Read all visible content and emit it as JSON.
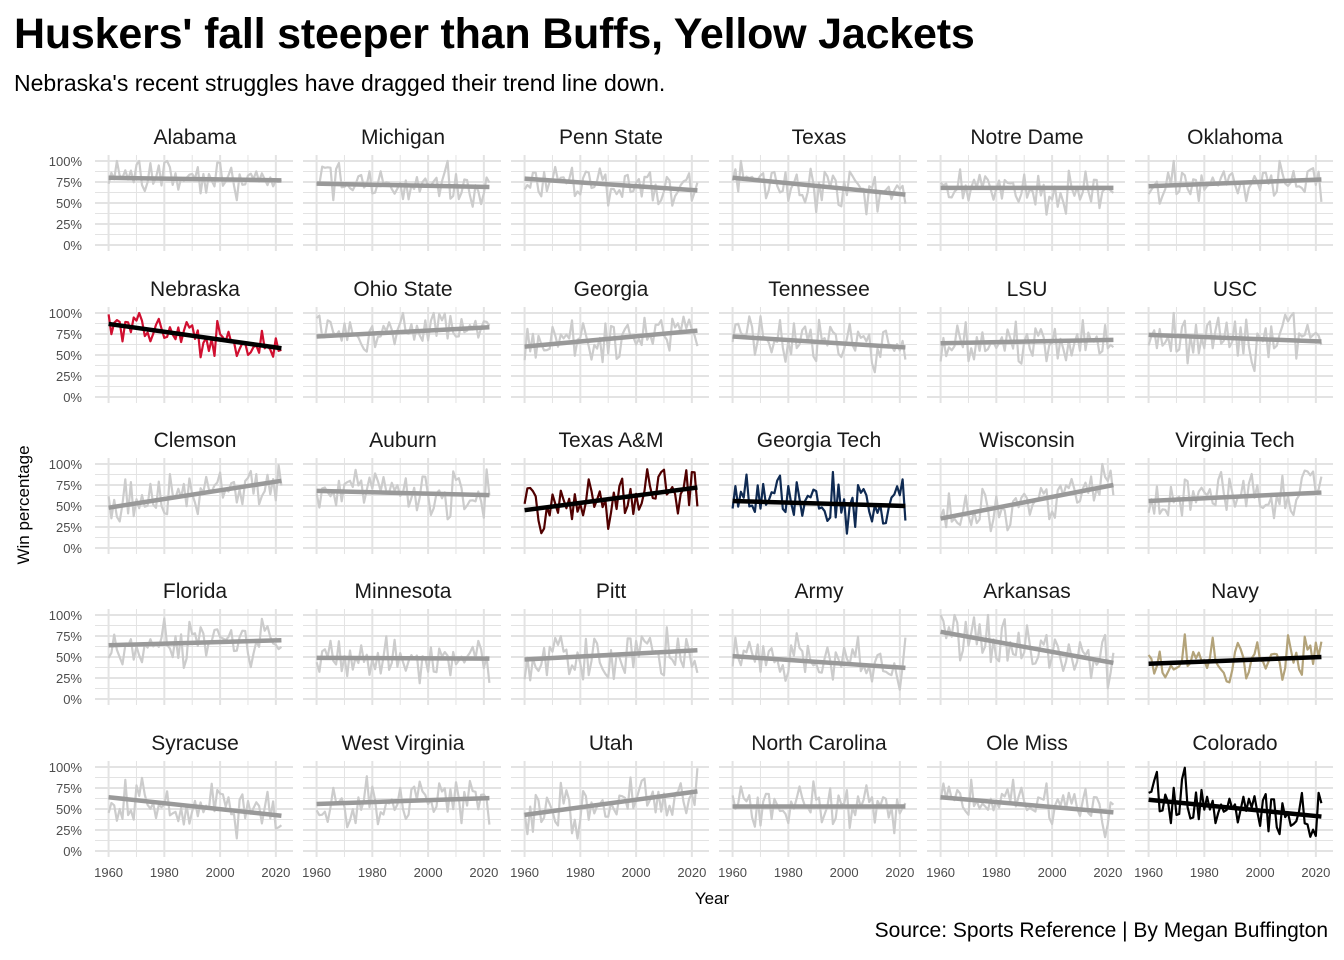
{
  "title": "Huskers' fall steeper than Buffs, Yellow Jackets",
  "subtitle": "Nebraska's recent struggles have dragged their trend line down.",
  "caption": "Source: Sports Reference | By Megan Buffington",
  "colors": {
    "muted_line": "#cccccc",
    "muted_trend": "#999999",
    "highlight_trend": "#000000",
    "grid": "#e3e3e3"
  },
  "chart_data": {
    "type": "line",
    "layout": "small-multiples",
    "xlabel": "Year",
    "ylabel": "Win percentage",
    "xlim": [
      1958,
      2024
    ],
    "ylim": [
      0,
      1
    ],
    "x_ticks": [
      1960,
      1980,
      2000,
      2020
    ],
    "x_tick_labels": [
      "1960",
      "1980",
      "2000",
      "2020"
    ],
    "y_ticks": [
      0,
      0.25,
      0.5,
      0.75,
      1
    ],
    "y_tick_labels": [
      "0%",
      "25%",
      "50%",
      "75%",
      "100%"
    ],
    "years": [
      1960,
      2022
    ],
    "teams": [
      {
        "name": "Alabama",
        "trend": [
          0.8,
          0.77
        ],
        "highlight": false,
        "seed": 11,
        "sd": 0.14
      },
      {
        "name": "Michigan",
        "trend": [
          0.73,
          0.69
        ],
        "highlight": false,
        "seed": 12,
        "sd": 0.17
      },
      {
        "name": "Penn State",
        "trend": [
          0.79,
          0.65
        ],
        "highlight": false,
        "seed": 13,
        "sd": 0.15
      },
      {
        "name": "Texas",
        "trend": [
          0.8,
          0.6
        ],
        "highlight": false,
        "seed": 14,
        "sd": 0.16
      },
      {
        "name": "Notre Dame",
        "trend": [
          0.68,
          0.68
        ],
        "highlight": false,
        "seed": 15,
        "sd": 0.16
      },
      {
        "name": "Oklahoma",
        "trend": [
          0.7,
          0.78
        ],
        "highlight": false,
        "seed": 16,
        "sd": 0.16
      },
      {
        "name": "Nebraska",
        "trend": [
          0.87,
          0.58
        ],
        "highlight": true,
        "color": "#d00f30",
        "seed": 21,
        "sd": 0.12
      },
      {
        "name": "Ohio State",
        "trend": [
          0.72,
          0.83
        ],
        "highlight": false,
        "seed": 22,
        "sd": 0.14
      },
      {
        "name": "Georgia",
        "trend": [
          0.6,
          0.79
        ],
        "highlight": false,
        "seed": 23,
        "sd": 0.16
      },
      {
        "name": "Tennessee",
        "trend": [
          0.72,
          0.59
        ],
        "highlight": false,
        "seed": 24,
        "sd": 0.17
      },
      {
        "name": "LSU",
        "trend": [
          0.64,
          0.68
        ],
        "highlight": false,
        "seed": 25,
        "sd": 0.16
      },
      {
        "name": "USC",
        "trend": [
          0.74,
          0.66
        ],
        "highlight": false,
        "seed": 26,
        "sd": 0.17
      },
      {
        "name": "Clemson",
        "trend": [
          0.48,
          0.8
        ],
        "highlight": false,
        "seed": 31,
        "sd": 0.17
      },
      {
        "name": "Auburn",
        "trend": [
          0.68,
          0.63
        ],
        "highlight": false,
        "seed": 32,
        "sd": 0.16
      },
      {
        "name": "Texas A&M",
        "trend": [
          0.45,
          0.72
        ],
        "highlight": true,
        "color": "#500000",
        "seed": 33,
        "sd": 0.17
      },
      {
        "name": "Georgia Tech",
        "trend": [
          0.56,
          0.5
        ],
        "highlight": true,
        "color": "#0f2a52",
        "seed": 34,
        "sd": 0.17
      },
      {
        "name": "Wisconsin",
        "trend": [
          0.35,
          0.75
        ],
        "highlight": false,
        "seed": 35,
        "sd": 0.17
      },
      {
        "name": "Virginia Tech",
        "trend": [
          0.56,
          0.66
        ],
        "highlight": false,
        "seed": 36,
        "sd": 0.16
      },
      {
        "name": "Florida",
        "trend": [
          0.64,
          0.7
        ],
        "highlight": false,
        "seed": 41,
        "sd": 0.16
      },
      {
        "name": "Minnesota",
        "trend": [
          0.49,
          0.48
        ],
        "highlight": false,
        "seed": 42,
        "sd": 0.16
      },
      {
        "name": "Pitt",
        "trend": [
          0.47,
          0.58
        ],
        "highlight": false,
        "seed": 43,
        "sd": 0.18
      },
      {
        "name": "Army",
        "trend": [
          0.51,
          0.37
        ],
        "highlight": false,
        "seed": 44,
        "sd": 0.18
      },
      {
        "name": "Arkansas",
        "trend": [
          0.8,
          0.43
        ],
        "highlight": false,
        "seed": 45,
        "sd": 0.17
      },
      {
        "name": "Navy",
        "trend": [
          0.42,
          0.5
        ],
        "highlight": true,
        "color": "#b3a37a",
        "seed": 46,
        "sd": 0.18
      },
      {
        "name": "Syracuse",
        "trend": [
          0.64,
          0.42
        ],
        "highlight": false,
        "seed": 51,
        "sd": 0.17
      },
      {
        "name": "West Virginia",
        "trend": [
          0.56,
          0.63
        ],
        "highlight": false,
        "seed": 52,
        "sd": 0.16
      },
      {
        "name": "Utah",
        "trend": [
          0.43,
          0.71
        ],
        "highlight": false,
        "seed": 53,
        "sd": 0.18
      },
      {
        "name": "North Carolina",
        "trend": [
          0.53,
          0.53
        ],
        "highlight": false,
        "seed": 54,
        "sd": 0.17
      },
      {
        "name": "Ole Miss",
        "trend": [
          0.64,
          0.46
        ],
        "highlight": false,
        "seed": 55,
        "sd": 0.17
      },
      {
        "name": "Colorado",
        "trend": [
          0.61,
          0.41
        ],
        "highlight": true,
        "color": "#000000",
        "seed": 56,
        "sd": 0.19
      }
    ]
  }
}
